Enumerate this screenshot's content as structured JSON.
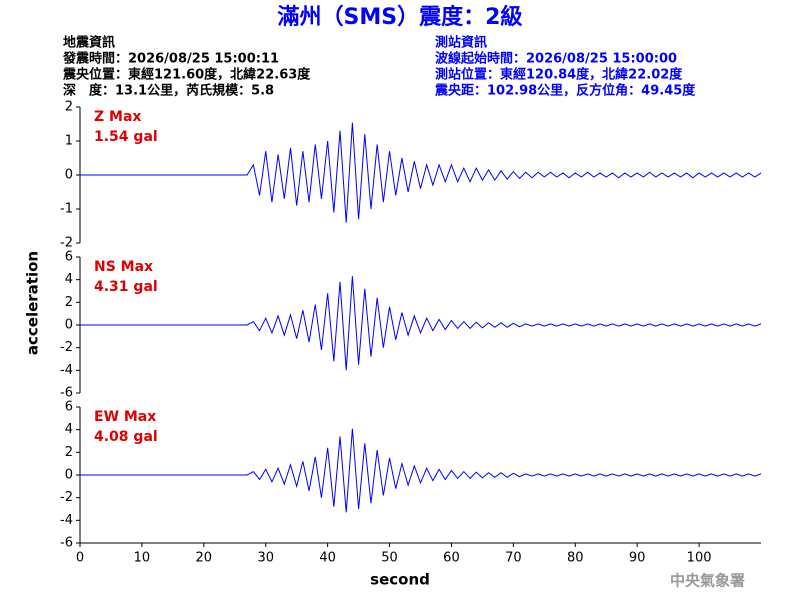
{
  "header": {
    "title": "滿州（SMS）震度：2級",
    "left": [
      "地震資訊",
      "發震時間：2026/08/25 15:00:11",
      "震央位置：東經121.60度，北緯22.63度",
      "深　度：13.1公里，芮氏規模：5.8"
    ],
    "right": [
      "測站資訊",
      "波線起始時間：2026/08/25 15:00:00",
      "測站位置：東經120.84度，北緯22.02度",
      "震央距：102.98公里，反方位角：49.45度"
    ]
  },
  "footer": "中央氣象署",
  "chart_data": [
    {
      "type": "line",
      "annotation": [
        "Z Max",
        "1.54 gal"
      ],
      "color": "#0000ff",
      "ylim": [
        -2,
        2
      ],
      "yticks": [
        -2,
        -1,
        0,
        1,
        2
      ],
      "xlim": [
        0,
        110
      ],
      "x": [
        0,
        1,
        2,
        3,
        4,
        5,
        6,
        7,
        8,
        9,
        10,
        11,
        12,
        13,
        14,
        15,
        16,
        17,
        18,
        19,
        20,
        21,
        22,
        23,
        24,
        25,
        26,
        27,
        28,
        29,
        30,
        31,
        32,
        33,
        34,
        35,
        36,
        37,
        38,
        39,
        40,
        41,
        42,
        43,
        44,
        45,
        46,
        47,
        48,
        49,
        50,
        51,
        52,
        53,
        54,
        55,
        56,
        57,
        58,
        59,
        60,
        61,
        62,
        63,
        64,
        65,
        66,
        67,
        68,
        69,
        70,
        71,
        72,
        73,
        74,
        75,
        76,
        77,
        78,
        79,
        80,
        81,
        82,
        83,
        84,
        85,
        86,
        87,
        88,
        89,
        90,
        91,
        92,
        93,
        94,
        95,
        96,
        97,
        98,
        99,
        100,
        101,
        102,
        103,
        104,
        105,
        106,
        107,
        108,
        109,
        110
      ],
      "values": [
        0,
        0,
        0,
        0,
        0,
        0,
        0,
        0,
        0,
        0,
        0,
        0,
        0,
        0,
        0,
        0,
        0,
        0,
        0,
        0,
        0,
        0,
        0,
        0,
        0,
        0,
        0,
        0,
        0.3,
        -0.6,
        0.7,
        -0.8,
        0.6,
        -0.7,
        0.8,
        -0.9,
        0.7,
        -0.8,
        0.9,
        -0.7,
        1.0,
        -1.1,
        1.3,
        -1.4,
        1.54,
        -1.3,
        1.2,
        -1.0,
        0.9,
        -0.8,
        0.7,
        -0.6,
        0.5,
        -0.5,
        0.4,
        -0.4,
        0.3,
        -0.3,
        0.3,
        -0.2,
        0.3,
        -0.2,
        0.2,
        -0.2,
        0.2,
        -0.15,
        0.15,
        -0.15,
        0.12,
        -0.12,
        0.1,
        -0.1,
        0.08,
        -0.08,
        0.08,
        -0.06,
        0.08,
        -0.06,
        0.06,
        -0.08,
        0.06,
        -0.06,
        0.08,
        -0.06,
        0.06,
        -0.06,
        0.06,
        -0.08,
        0.06,
        -0.06,
        0.06,
        -0.06,
        0.08,
        -0.06,
        0.06,
        -0.06,
        0.06,
        -0.06,
        0.06,
        -0.08,
        0.06,
        -0.06,
        0.06,
        -0.06,
        0.06,
        -0.06,
        0.06,
        -0.06,
        0.06,
        -0.06,
        0.06
      ]
    },
    {
      "type": "line",
      "annotation": [
        "NS Max",
        "4.31 gal"
      ],
      "color": "#0000ff",
      "ylim": [
        -6,
        6
      ],
      "yticks": [
        -6,
        -4,
        -2,
        0,
        2,
        4,
        6
      ],
      "xlim": [
        0,
        110
      ],
      "ylabel": "acceleration",
      "x": [
        0,
        1,
        2,
        3,
        4,
        5,
        6,
        7,
        8,
        9,
        10,
        11,
        12,
        13,
        14,
        15,
        16,
        17,
        18,
        19,
        20,
        21,
        22,
        23,
        24,
        25,
        26,
        27,
        28,
        29,
        30,
        31,
        32,
        33,
        34,
        35,
        36,
        37,
        38,
        39,
        40,
        41,
        42,
        43,
        44,
        45,
        46,
        47,
        48,
        49,
        50,
        51,
        52,
        53,
        54,
        55,
        56,
        57,
        58,
        59,
        60,
        61,
        62,
        63,
        64,
        65,
        66,
        67,
        68,
        69,
        70,
        71,
        72,
        73,
        74,
        75,
        76,
        77,
        78,
        79,
        80,
        81,
        82,
        83,
        84,
        85,
        86,
        87,
        88,
        89,
        90,
        91,
        92,
        93,
        94,
        95,
        96,
        97,
        98,
        99,
        100,
        101,
        102,
        103,
        104,
        105,
        106,
        107,
        108,
        109,
        110
      ],
      "values": [
        0,
        0,
        0,
        0,
        0,
        0,
        0,
        0,
        0,
        0,
        0,
        0,
        0,
        0,
        0,
        0,
        0,
        0,
        0,
        0,
        0,
        0,
        0,
        0,
        0,
        0,
        0,
        0,
        0.3,
        -0.5,
        0.6,
        -0.7,
        0.8,
        -0.9,
        0.9,
        -1.2,
        1.3,
        -1.5,
        1.8,
        -2.2,
        2.8,
        -3.2,
        3.8,
        -4.0,
        4.31,
        -3.5,
        3.2,
        -2.8,
        2.4,
        -2.0,
        1.6,
        -1.3,
        1.1,
        -0.9,
        0.8,
        -0.7,
        0.6,
        -0.5,
        0.5,
        -0.4,
        0.4,
        -0.3,
        0.3,
        -0.3,
        0.25,
        -0.25,
        0.2,
        -0.2,
        0.2,
        -0.2,
        0.15,
        -0.15,
        0.1,
        -0.1,
        0.1,
        -0.1,
        0.1,
        -0.1,
        0.1,
        -0.1,
        0.1,
        -0.1,
        0.1,
        -0.1,
        0.1,
        -0.1,
        0.1,
        -0.1,
        0.1,
        -0.1,
        0.1,
        -0.1,
        0.1,
        -0.1,
        0.1,
        -0.1,
        0.1,
        -0.1,
        0.1,
        -0.1,
        0.1,
        -0.1,
        0.1,
        -0.1,
        0.1,
        -0.1,
        0.1,
        -0.1,
        0.1,
        -0.1,
        0.1
      ]
    },
    {
      "type": "line",
      "annotation": [
        "EW Max",
        "4.08 gal"
      ],
      "color": "#0000ff",
      "ylim": [
        -6,
        6
      ],
      "yticks": [
        -6,
        -4,
        -2,
        0,
        2,
        4,
        6
      ],
      "xlim": [
        0,
        110
      ],
      "xticks": [
        0,
        10,
        20,
        30,
        40,
        50,
        60,
        70,
        80,
        90,
        100
      ],
      "xlabel": "second",
      "x": [
        0,
        1,
        2,
        3,
        4,
        5,
        6,
        7,
        8,
        9,
        10,
        11,
        12,
        13,
        14,
        15,
        16,
        17,
        18,
        19,
        20,
        21,
        22,
        23,
        24,
        25,
        26,
        27,
        28,
        29,
        30,
        31,
        32,
        33,
        34,
        35,
        36,
        37,
        38,
        39,
        40,
        41,
        42,
        43,
        44,
        45,
        46,
        47,
        48,
        49,
        50,
        51,
        52,
        53,
        54,
        55,
        56,
        57,
        58,
        59,
        60,
        61,
        62,
        63,
        64,
        65,
        66,
        67,
        68,
        69,
        70,
        71,
        72,
        73,
        74,
        75,
        76,
        77,
        78,
        79,
        80,
        81,
        82,
        83,
        84,
        85,
        86,
        87,
        88,
        89,
        90,
        91,
        92,
        93,
        94,
        95,
        96,
        97,
        98,
        99,
        100,
        101,
        102,
        103,
        104,
        105,
        106,
        107,
        108,
        109,
        110
      ],
      "values": [
        0,
        0,
        0,
        0,
        0,
        0,
        0,
        0,
        0,
        0,
        0,
        0,
        0,
        0,
        0,
        0,
        0,
        0,
        0,
        0,
        0,
        0,
        0,
        0,
        0,
        0,
        0,
        0,
        0.3,
        -0.4,
        0.5,
        -0.6,
        0.6,
        -0.8,
        0.9,
        -1.0,
        1.2,
        -1.4,
        1.6,
        -2.0,
        2.4,
        -2.8,
        3.4,
        -3.3,
        4.08,
        -3.0,
        2.8,
        -2.5,
        2.2,
        -1.8,
        1.5,
        -1.2,
        1.0,
        -0.9,
        0.8,
        -0.7,
        0.6,
        -0.5,
        0.5,
        -0.4,
        0.4,
        -0.3,
        0.3,
        -0.3,
        0.25,
        -0.25,
        0.2,
        -0.2,
        0.2,
        -0.2,
        0.15,
        -0.15,
        0.1,
        -0.1,
        0.1,
        -0.1,
        0.1,
        -0.1,
        0.1,
        -0.1,
        0.1,
        -0.1,
        0.1,
        -0.1,
        0.1,
        -0.1,
        0.1,
        -0.1,
        0.1,
        -0.1,
        0.1,
        -0.1,
        0.1,
        -0.1,
        0.1,
        -0.1,
        0.1,
        -0.1,
        0.1,
        -0.1,
        0.1,
        -0.1,
        0.1,
        -0.1,
        0.1,
        -0.1,
        0.1,
        -0.1,
        0.1,
        -0.1,
        0.1
      ]
    }
  ]
}
